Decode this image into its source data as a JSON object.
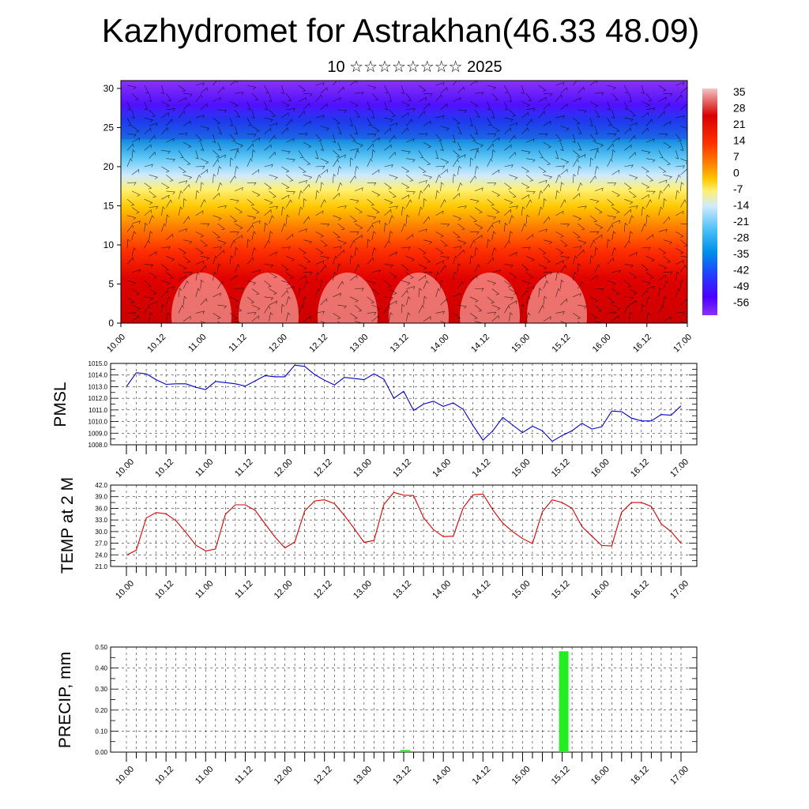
{
  "header": {
    "title": "Kazhydromet for Astrakhan(46.33 48.09)",
    "subtitle": "10 ☆☆☆☆☆☆☆☆ 2025"
  },
  "colors": {
    "pmsl_line": "#0000cc",
    "temp_line": "#dd0000",
    "precip_bar": "#22ee22",
    "colorbar": [
      "#f4c6c6",
      "#e87d7d",
      "#d10000",
      "#ff4000",
      "#ff8400",
      "#ffc400",
      "#fff08a",
      "#c7ebff",
      "#4ec2f7",
      "#0090e8",
      "#1e40ff",
      "#4d00ff",
      "#8a32ff"
    ]
  },
  "chart_data": [
    {
      "type": "heatmap",
      "title": "",
      "ylim": [
        0,
        31
      ],
      "yticks": [
        "0",
        "5",
        "10",
        "15",
        "20",
        "25",
        "30"
      ],
      "x_ticks": [
        "10.00",
        "10.12",
        "11.00",
        "11.12",
        "12.00",
        "12.12",
        "13.00",
        "13.12",
        "14.00",
        "14.12",
        "15.00",
        "15.12",
        "16.00",
        "16.12",
        "17.00"
      ],
      "colorbar_labels": [
        "35",
        "28",
        "21",
        "14",
        "7",
        "0",
        "-7",
        "-14",
        "-21",
        "-28",
        "-35",
        "-42",
        "-49",
        "-56"
      ],
      "overlay": "wind barbs"
    },
    {
      "type": "line",
      "ylabel": "PMSL",
      "ylim": [
        1008.0,
        1015.0
      ],
      "yticks": [
        "1015.0",
        "1014.0",
        "1013.0",
        "1012.0",
        "1011.0",
        "1010.0",
        "1009.0",
        "1008.0"
      ],
      "x_ticks": [
        "10.00",
        "10.12",
        "11.00",
        "11.12",
        "12.00",
        "12.12",
        "13.00",
        "13.12",
        "14.00",
        "14.12",
        "15.00",
        "15.12",
        "16.00",
        "16.12",
        "17.00"
      ],
      "series": [
        {
          "values": [
            1013.0,
            1014.2,
            1014.1,
            1013.6,
            1013.2,
            1013.25,
            1013.25,
            1012.95,
            1012.75,
            1013.45,
            1013.35,
            1013.25,
            1013.05,
            1013.5,
            1013.95,
            1013.85,
            1013.85,
            1014.85,
            1014.75,
            1014.05,
            1013.55,
            1013.15,
            1013.8,
            1013.7,
            1013.6,
            1014.1,
            1013.65,
            1012.0,
            1012.6,
            1010.95,
            1011.5,
            1011.75,
            1011.3,
            1011.6,
            1011.05,
            1009.65,
            1008.4,
            1009.2,
            1010.35,
            1009.7,
            1009.05,
            1009.6,
            1009.2,
            1008.3,
            1008.8,
            1009.2,
            1009.85,
            1009.35,
            1009.55,
            1010.9,
            1010.85,
            1010.3,
            1010.05,
            1010.05,
            1010.6,
            1010.55,
            1011.35
          ]
        }
      ]
    },
    {
      "type": "line",
      "ylabel": "TEMP at 2 M",
      "ylim": [
        21.0,
        42.0
      ],
      "yticks": [
        "42.0",
        "39.0",
        "36.0",
        "33.0",
        "30.0",
        "27.0",
        "24.0",
        "21.0"
      ],
      "x_ticks": [
        "10.00",
        "10.12",
        "11.00",
        "11.12",
        "12.00",
        "12.12",
        "13.00",
        "13.12",
        "14.00",
        "14.12",
        "15.00",
        "15.12",
        "16.00",
        "16.12",
        "17.00"
      ],
      "series": [
        {
          "values": [
            23.9,
            25.2,
            33.5,
            34.9,
            34.6,
            32.8,
            29.8,
            26.5,
            25.0,
            25.5,
            34.5,
            36.9,
            36.9,
            35.5,
            32.0,
            28.6,
            25.8,
            27.3,
            35.3,
            37.9,
            38.2,
            37.2,
            34.2,
            30.8,
            27.2,
            27.7,
            37.0,
            40.1,
            39.4,
            39.3,
            33.6,
            30.5,
            28.7,
            28.8,
            36.1,
            39.5,
            39.7,
            35.6,
            32.2,
            30.0,
            28.2,
            26.9,
            35.1,
            38.2,
            37.5,
            36.0,
            31.3,
            28.8,
            26.4,
            26.3,
            35.0,
            37.5,
            37.5,
            36.5,
            32.0,
            30.0,
            27.0
          ]
        }
      ]
    },
    {
      "type": "bar",
      "ylabel": "PRECIP, mm",
      "ylim": [
        0.0,
        0.5
      ],
      "yticks": [
        "0.50",
        "0.40",
        "0.30",
        "0.20",
        "0.10",
        "0.00"
      ],
      "x_ticks": [
        "10.00",
        "10.12",
        "11.00",
        "11.12",
        "12.00",
        "12.12",
        "13.00",
        "13.12",
        "14.00",
        "14.12",
        "15.00",
        "15.12",
        "16.00",
        "16.12",
        "17.00"
      ],
      "bars": [
        {
          "x": "13.12",
          "value": 0.01
        },
        {
          "x": "15.12",
          "value": 0.48
        }
      ]
    }
  ]
}
